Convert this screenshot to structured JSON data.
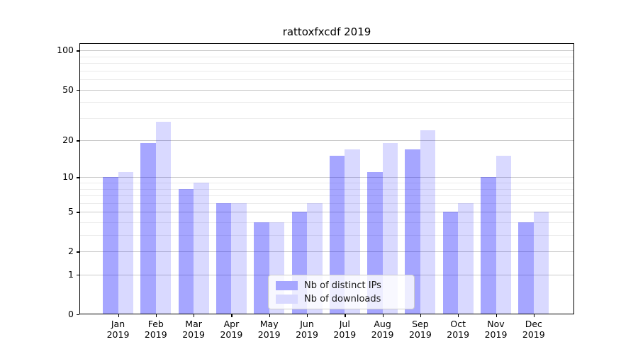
{
  "title": "rattoxfxcdf 2019",
  "colors": {
    "ips_bar": "rgba(0,0,255,0.35)",
    "downloads_bar": "rgba(0,0,255,0.15)",
    "ips_swatch": "#a6a6ff",
    "downloads_swatch": "#d9d9ff",
    "major_grid": "#c9c9c9",
    "minor_grid": "#ebebeb",
    "axis_color": "#000000",
    "text_color": "#000000"
  },
  "chart_data": {
    "type": "bar",
    "title": "rattoxfxcdf 2019",
    "categories": [
      "Jan",
      "Feb",
      "Mar",
      "Apr",
      "May",
      "Jun",
      "Jul",
      "Aug",
      "Sep",
      "Oct",
      "Nov",
      "Dec"
    ],
    "year_label": "2019",
    "series": [
      {
        "name": "Nb of distinct IPs",
        "values": [
          10,
          19,
          8,
          6,
          4,
          5,
          15,
          11,
          17,
          5,
          10,
          4
        ]
      },
      {
        "name": "Nb of downloads",
        "values": [
          11,
          28,
          9,
          6,
          4,
          6,
          17,
          19,
          24,
          6,
          15,
          5
        ]
      }
    ],
    "xlabel": "",
    "ylabel": "",
    "y_scale": "log1p",
    "y_ticks": [
      0,
      1,
      2,
      5,
      10,
      20,
      50,
      100
    ],
    "y_minor_ticks": [
      3,
      4,
      6,
      7,
      8,
      9,
      30,
      40,
      60,
      70,
      80,
      90
    ],
    "ylim": [
      0,
      114
    ],
    "grid": true,
    "legend_position": "lower center"
  }
}
